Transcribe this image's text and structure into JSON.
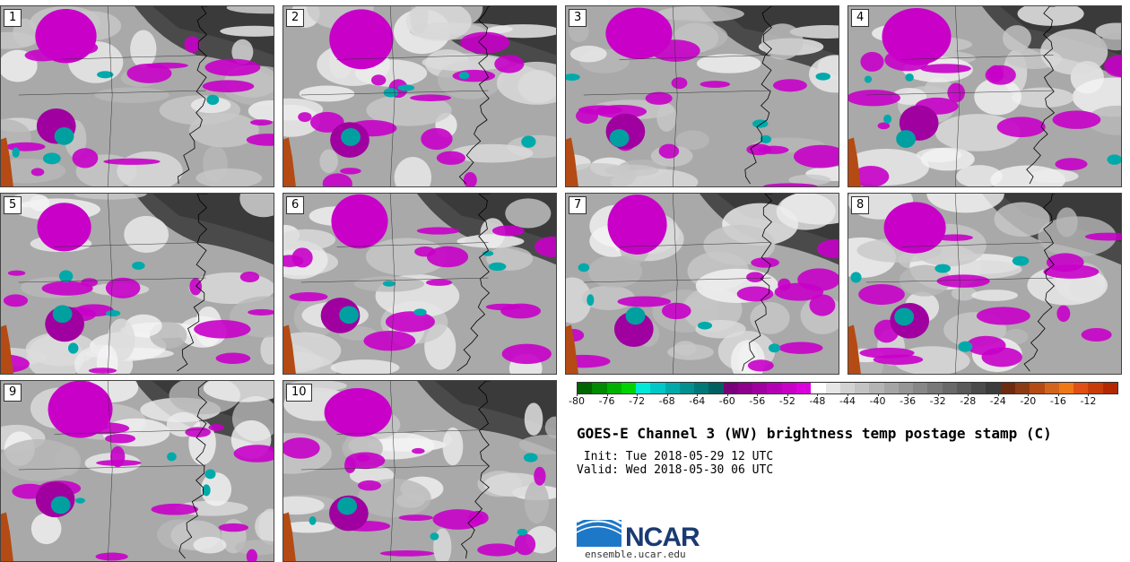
{
  "panels": [
    {
      "label": "1"
    },
    {
      "label": "2"
    },
    {
      "label": "3"
    },
    {
      "label": "4"
    },
    {
      "label": "5"
    },
    {
      "label": "6"
    },
    {
      "label": "7"
    },
    {
      "label": "8"
    },
    {
      "label": "9"
    },
    {
      "label": "10"
    }
  ],
  "colorbar": {
    "colors": [
      "#006400",
      "#008a00",
      "#00b000",
      "#00d400",
      "#00e8d8",
      "#00c8c8",
      "#00aaaa",
      "#009090",
      "#007878",
      "#006060",
      "#780078",
      "#8c008c",
      "#a000a0",
      "#b400b4",
      "#c800c8",
      "#dc00dc",
      "#ffffff",
      "#e6e6e6",
      "#d2d2d2",
      "#c3c3c3",
      "#b4b4b4",
      "#a5a5a5",
      "#969696",
      "#878787",
      "#787878",
      "#696969",
      "#5a5a5a",
      "#4b4b4b",
      "#3c3c3c",
      "#6e2a0f",
      "#8c3c14",
      "#b44b14",
      "#d2641e",
      "#f07814",
      "#e05014",
      "#c83c0a",
      "#b42800"
    ],
    "tick_labels": [
      "-80",
      "-76",
      "-72",
      "-68",
      "-64",
      "-60",
      "-56",
      "-52",
      "-48",
      "-44",
      "-40",
      "-36",
      "-32",
      "-28",
      "-24",
      "-20",
      "-16",
      "-12"
    ]
  },
  "title": "GOES-E Channel 3 (WV) brightness temp postage stamp (C)",
  "init": " Init: Tue 2018-05-29 12 UTC",
  "valid": "Valid: Wed 2018-05-30 06 UTC",
  "logo": {
    "text": "NCAR",
    "site": "ensemble.ucar.edu"
  }
}
